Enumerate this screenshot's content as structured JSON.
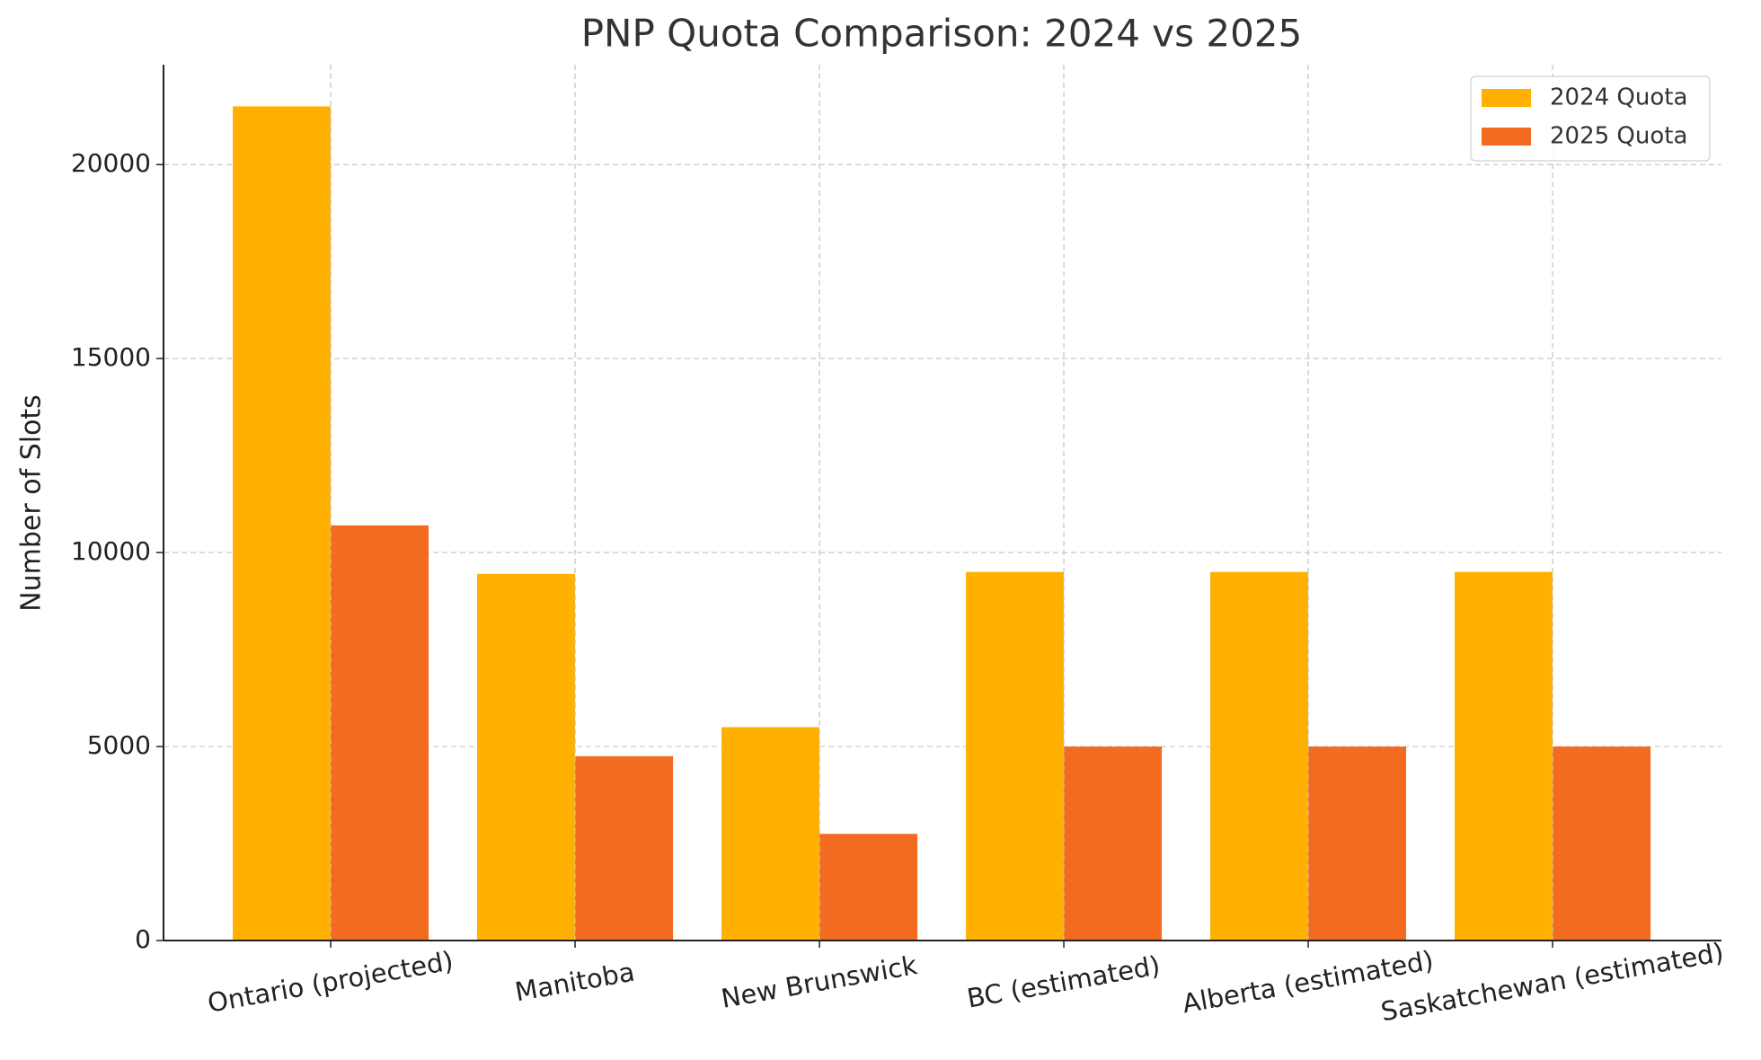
{
  "chart_data": {
    "type": "bar",
    "title": "PNP Quota Comparison: 2024 vs 2025",
    "y_label": "Number of Slots",
    "categories": [
      "Ontario (projected)",
      "Manitoba",
      "New Brunswick",
      "BC (estimated)",
      "Alberta (estimated)",
      "Saskatchewan (estimated)"
    ],
    "series": [
      {
        "name": "2024 Quota",
        "color": "#ffb000",
        "values": [
          21500,
          9450,
          5500,
          9500,
          9500,
          9500
        ]
      },
      {
        "name": "2025 Quota",
        "color": "#f26b21",
        "values": [
          10700,
          4750,
          2750,
          5000,
          5000,
          5000
        ]
      }
    ],
    "ylim": [
      0,
      22575
    ],
    "yticks": [
      0,
      5000,
      10000,
      15000,
      20000
    ],
    "grid": true,
    "legend": "upper right"
  }
}
